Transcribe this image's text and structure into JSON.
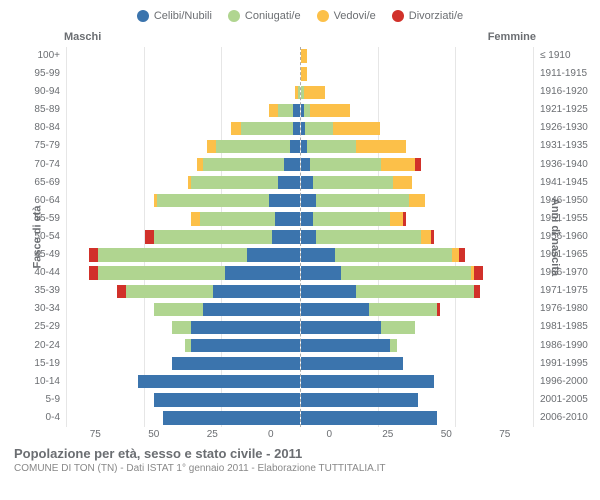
{
  "legend": [
    {
      "label": "Celibi/Nubili",
      "color": "#3b74ad"
    },
    {
      "label": "Coniugati/e",
      "color": "#b0d590"
    },
    {
      "label": "Vedovi/e",
      "color": "#fcc049"
    },
    {
      "label": "Divorziati/e",
      "color": "#d1312a"
    }
  ],
  "header": {
    "male": "Maschi",
    "female": "Femmine"
  },
  "y_title_left": "Fasce di età",
  "y_title_right": "Anni di nascita",
  "age_labels": [
    "100+",
    "95-99",
    "90-94",
    "85-89",
    "80-84",
    "75-79",
    "70-74",
    "65-69",
    "60-64",
    "55-59",
    "50-54",
    "45-49",
    "40-44",
    "35-39",
    "30-34",
    "25-29",
    "20-24",
    "15-19",
    "10-14",
    "5-9",
    "0-4"
  ],
  "birth_labels": [
    "≤ 1910",
    "1911-1915",
    "1916-1920",
    "1921-1925",
    "1926-1930",
    "1931-1935",
    "1936-1940",
    "1941-1945",
    "1946-1950",
    "1951-1955",
    "1956-1960",
    "1961-1965",
    "1966-1970",
    "1971-1975",
    "1976-1980",
    "1981-1985",
    "1986-1990",
    "1991-1995",
    "1996-2000",
    "2001-2005",
    "2006-2010"
  ],
  "x_max": 75,
  "x_ticks": [
    0,
    25,
    50,
    75
  ],
  "bars": [
    {
      "m": {
        "c": 0,
        "co": 0,
        "v": 0,
        "d": 0
      },
      "f": {
        "c": 0,
        "co": 0,
        "v": 2,
        "d": 0
      }
    },
    {
      "m": {
        "c": 0,
        "co": 0,
        "v": 0,
        "d": 0
      },
      "f": {
        "c": 0,
        "co": 0,
        "v": 2,
        "d": 0
      }
    },
    {
      "m": {
        "c": 0,
        "co": 0.5,
        "v": 1,
        "d": 0
      },
      "f": {
        "c": 0,
        "co": 1,
        "v": 7,
        "d": 0
      }
    },
    {
      "m": {
        "c": 2,
        "co": 5,
        "v": 3,
        "d": 0
      },
      "f": {
        "c": 1,
        "co": 2,
        "v": 13,
        "d": 0
      }
    },
    {
      "m": {
        "c": 2,
        "co": 17,
        "v": 3,
        "d": 0
      },
      "f": {
        "c": 1.5,
        "co": 9,
        "v": 15,
        "d": 0
      }
    },
    {
      "m": {
        "c": 3,
        "co": 24,
        "v": 3,
        "d": 0
      },
      "f": {
        "c": 2,
        "co": 16,
        "v": 16,
        "d": 0
      }
    },
    {
      "m": {
        "c": 5,
        "co": 26,
        "v": 2,
        "d": 0
      },
      "f": {
        "c": 3,
        "co": 23,
        "v": 11,
        "d": 2
      }
    },
    {
      "m": {
        "c": 7,
        "co": 28,
        "v": 1,
        "d": 0
      },
      "f": {
        "c": 4,
        "co": 26,
        "v": 6,
        "d": 0
      }
    },
    {
      "m": {
        "c": 10,
        "co": 36,
        "v": 1,
        "d": 0
      },
      "f": {
        "c": 5,
        "co": 30,
        "v": 5,
        "d": 0
      }
    },
    {
      "m": {
        "c": 8,
        "co": 24,
        "v": 3,
        "d": 0
      },
      "f": {
        "c": 4,
        "co": 25,
        "v": 4,
        "d": 1
      }
    },
    {
      "m": {
        "c": 9,
        "co": 38,
        "v": 0,
        "d": 3
      },
      "f": {
        "c": 5,
        "co": 34,
        "v": 3,
        "d": 1
      }
    },
    {
      "m": {
        "c": 17,
        "co": 48,
        "v": 0,
        "d": 3
      },
      "f": {
        "c": 11,
        "co": 38,
        "v": 2,
        "d": 2
      }
    },
    {
      "m": {
        "c": 24,
        "co": 41,
        "v": 0,
        "d": 3
      },
      "f": {
        "c": 13,
        "co": 42,
        "v": 1,
        "d": 3
      }
    },
    {
      "m": {
        "c": 28,
        "co": 28,
        "v": 0,
        "d": 3
      },
      "f": {
        "c": 18,
        "co": 38,
        "v": 0,
        "d": 2
      }
    },
    {
      "m": {
        "c": 31,
        "co": 16,
        "v": 0,
        "d": 0
      },
      "f": {
        "c": 22,
        "co": 22,
        "v": 0,
        "d": 1
      }
    },
    {
      "m": {
        "c": 35,
        "co": 6,
        "v": 0,
        "d": 0
      },
      "f": {
        "c": 26,
        "co": 11,
        "v": 0,
        "d": 0
      }
    },
    {
      "m": {
        "c": 35,
        "co": 2,
        "v": 0,
        "d": 0
      },
      "f": {
        "c": 29,
        "co": 2,
        "v": 0,
        "d": 0
      }
    },
    {
      "m": {
        "c": 41,
        "co": 0,
        "v": 0,
        "d": 0
      },
      "f": {
        "c": 33,
        "co": 0,
        "v": 0,
        "d": 0
      }
    },
    {
      "m": {
        "c": 52,
        "co": 0,
        "v": 0,
        "d": 0
      },
      "f": {
        "c": 43,
        "co": 0,
        "v": 0,
        "d": 0
      }
    },
    {
      "m": {
        "c": 47,
        "co": 0,
        "v": 0,
        "d": 0
      },
      "f": {
        "c": 38,
        "co": 0,
        "v": 0,
        "d": 0
      }
    },
    {
      "m": {
        "c": 44,
        "co": 0,
        "v": 0,
        "d": 0
      },
      "f": {
        "c": 44,
        "co": 0,
        "v": 0,
        "d": 0
      }
    }
  ],
  "footer": {
    "title": "Popolazione per età, sesso e stato civile - 2011",
    "sub": "COMUNE DI TON (TN) - Dati ISTAT 1° gennaio 2011 - Elaborazione TUTTITALIA.IT"
  }
}
